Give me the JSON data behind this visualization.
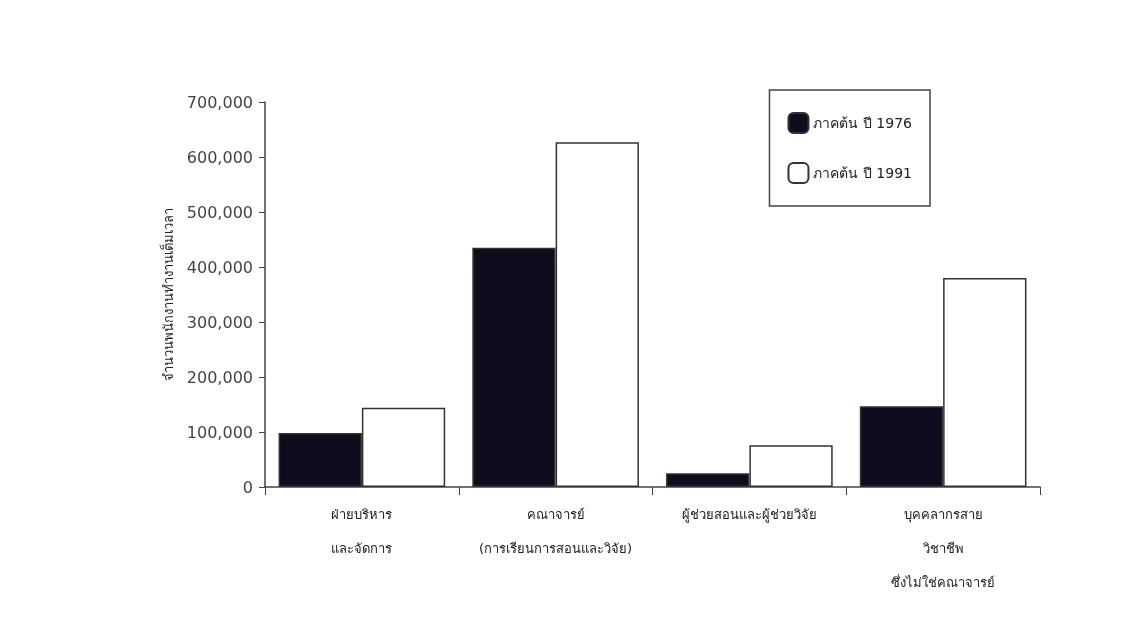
{
  "chart_data": {
    "type": "bar",
    "ylabel": "จำนวนพนักงานทำงานเต็มเวลา",
    "categories": [
      "ฝ่ายบริหาร\nและจัดการ",
      "คณาจารย์\n(การเรียนการสอนและวิจัย)",
      "ผู้ช่วยสอนและผู้ช่วยวิจัย",
      "บุคคลากรสาย\nวิชาชีพ\nซึ่งไม่ใช่คณาจารย์"
    ],
    "series": [
      {
        "name": "ภาคต้น ปี 1976",
        "color": "#0d0d1e",
        "values": [
          98000,
          435000,
          25000,
          147000
        ]
      },
      {
        "name": "ภาคต้น ปี 1991",
        "color": "#ffffff",
        "values": [
          144000,
          627000,
          76000,
          380000
        ]
      }
    ],
    "ylim": [
      0,
      700000
    ],
    "yticks": [
      0,
      {
        "value": 100000,
        "label": "100,000"
      },
      {
        "value": 200000,
        "label": "200,000"
      },
      {
        "value": 300000,
        "label": "300,000"
      },
      {
        "value": 400000,
        "label": "400,000"
      },
      {
        "value": 500000,
        "label": "500,000"
      },
      {
        "value": 600000,
        "label": "600,000"
      },
      {
        "value": 700000,
        "label": "700,000"
      }
    ],
    "grid": false,
    "legend": "top right"
  }
}
